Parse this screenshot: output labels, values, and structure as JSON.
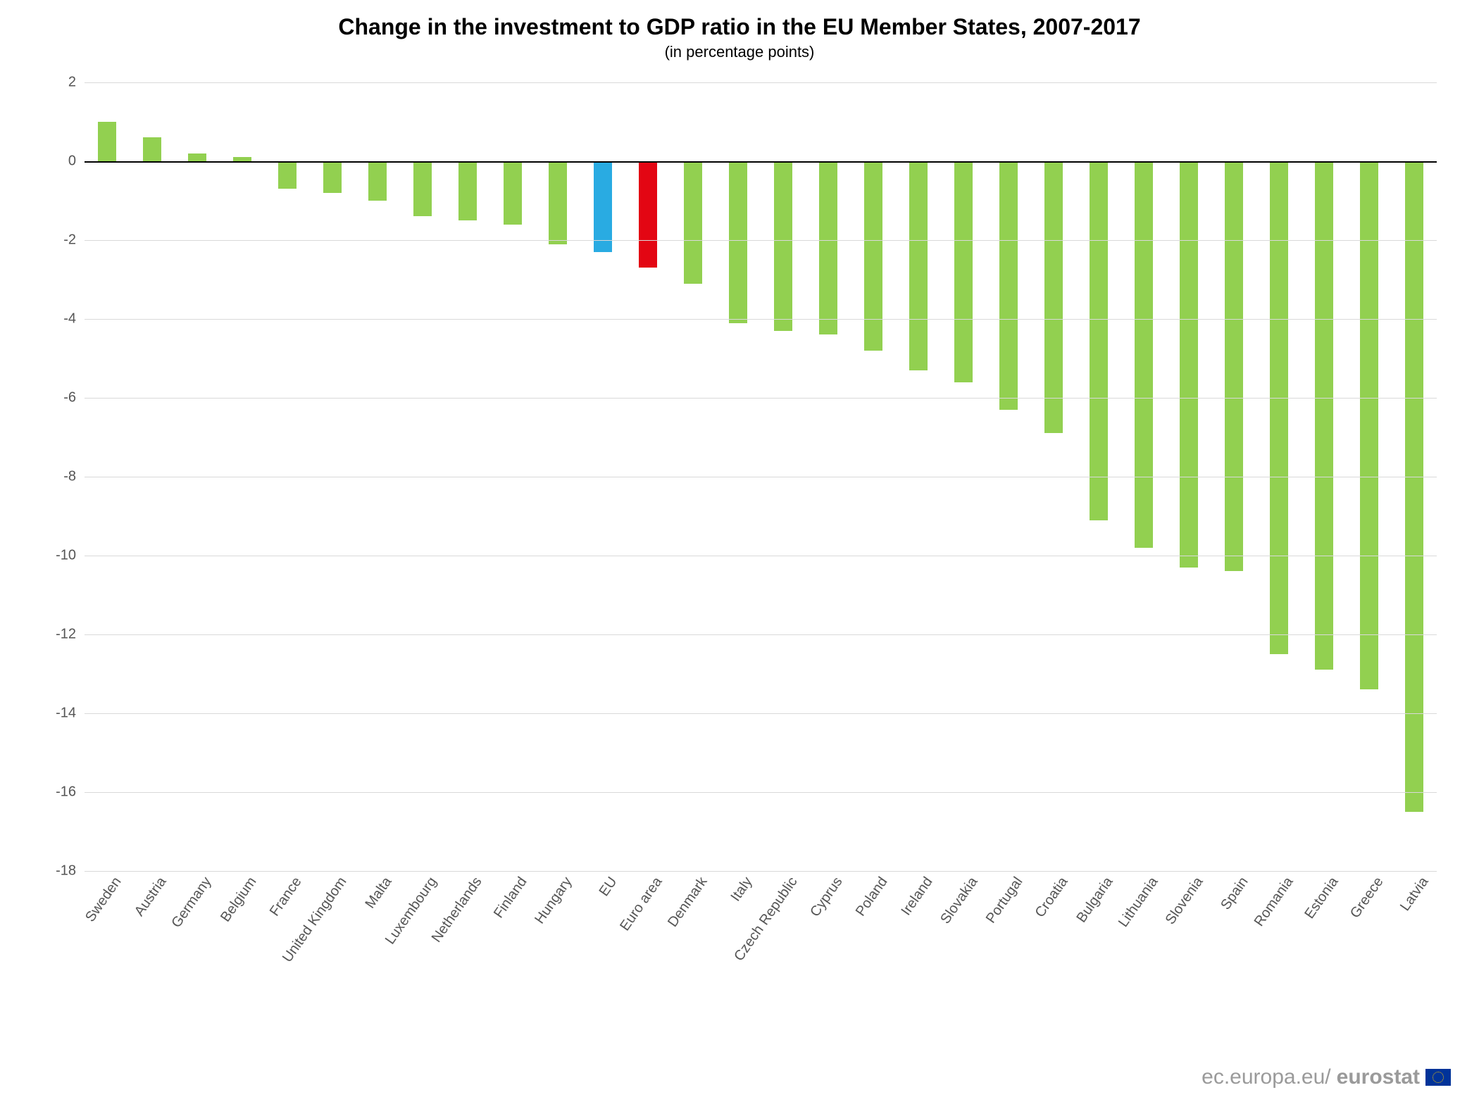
{
  "chart": {
    "type": "bar",
    "title": "Change in the investment to GDP ratio in the EU Member States, 2007-2017",
    "title_fontsize": 32,
    "subtitle": "(in percentage points)",
    "subtitle_fontsize": 22,
    "background_color": "#ffffff",
    "grid_color": "#d9d9d9",
    "zero_line_color": "#000000",
    "ylim": [
      -18,
      2
    ],
    "ytick_step": 2,
    "yticks": [
      2,
      0,
      -2,
      -4,
      -6,
      -8,
      -10,
      -12,
      -14,
      -16,
      -18
    ],
    "tick_fontsize": 20,
    "xtick_fontsize": 20,
    "xtick_rotation_deg": -55,
    "bar_width_ratio": 0.42,
    "default_bar_color": "#92d050",
    "categories": [
      {
        "label": "Sweden",
        "value": 1.0,
        "color": "#92d050"
      },
      {
        "label": "Austria",
        "value": 0.6,
        "color": "#92d050"
      },
      {
        "label": "Germany",
        "value": 0.2,
        "color": "#92d050"
      },
      {
        "label": "Belgium",
        "value": 0.1,
        "color": "#92d050"
      },
      {
        "label": "France",
        "value": -0.7,
        "color": "#92d050"
      },
      {
        "label": "United Kingdom",
        "value": -0.8,
        "color": "#92d050"
      },
      {
        "label": "Malta",
        "value": -1.0,
        "color": "#92d050"
      },
      {
        "label": "Luxembourg",
        "value": -1.4,
        "color": "#92d050"
      },
      {
        "label": "Netherlands",
        "value": -1.5,
        "color": "#92d050"
      },
      {
        "label": "Finland",
        "value": -1.6,
        "color": "#92d050"
      },
      {
        "label": "Hungary",
        "value": -2.1,
        "color": "#92d050"
      },
      {
        "label": "EU",
        "value": -2.3,
        "color": "#29abe2"
      },
      {
        "label": "Euro area",
        "value": -2.7,
        "color": "#e30613"
      },
      {
        "label": "Denmark",
        "value": -3.1,
        "color": "#92d050"
      },
      {
        "label": "Italy",
        "value": -4.1,
        "color": "#92d050"
      },
      {
        "label": "Czech Republic",
        "value": -4.3,
        "color": "#92d050"
      },
      {
        "label": "Cyprus",
        "value": -4.4,
        "color": "#92d050"
      },
      {
        "label": "Poland",
        "value": -4.8,
        "color": "#92d050"
      },
      {
        "label": "Ireland",
        "value": -5.3,
        "color": "#92d050"
      },
      {
        "label": "Slovakia",
        "value": -5.6,
        "color": "#92d050"
      },
      {
        "label": "Portugal",
        "value": -6.3,
        "color": "#92d050"
      },
      {
        "label": "Croatia",
        "value": -6.9,
        "color": "#92d050"
      },
      {
        "label": "Bulgaria",
        "value": -9.1,
        "color": "#92d050"
      },
      {
        "label": "Lithuania",
        "value": -9.8,
        "color": "#92d050"
      },
      {
        "label": "Slovenia",
        "value": -10.3,
        "color": "#92d050"
      },
      {
        "label": "Spain",
        "value": -10.4,
        "color": "#92d050"
      },
      {
        "label": "Romania",
        "value": -12.5,
        "color": "#92d050"
      },
      {
        "label": "Estonia",
        "value": -12.9,
        "color": "#92d050"
      },
      {
        "label": "Greece",
        "value": -13.4,
        "color": "#92d050"
      },
      {
        "label": "Latvia",
        "value": -16.5,
        "color": "#92d050"
      }
    ]
  },
  "footer": {
    "prefix": "ec.europa.eu/",
    "brand": "eurostat",
    "fontsize": 30
  }
}
